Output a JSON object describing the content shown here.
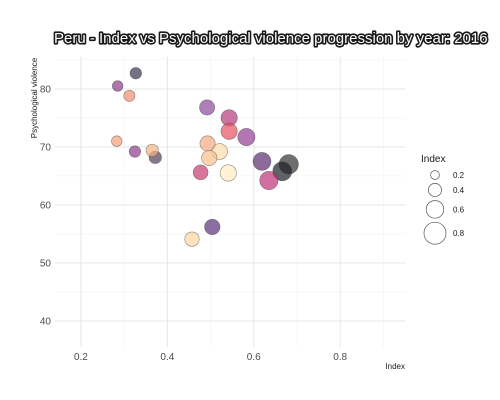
{
  "chart_data": {
    "type": "scatter",
    "title": "Peru - Index vs Psychological violence progression by year: 2016",
    "xlabel": "Index",
    "ylabel": "Psychological violence",
    "xlim": [
      0.14,
      0.95
    ],
    "ylim": [
      35.5,
      85.5
    ],
    "xticks": [
      0.2,
      0.4,
      0.6,
      0.8
    ],
    "yticks": [
      40,
      50,
      60,
      70,
      80
    ],
    "xtick_labels": [
      "0.2",
      "0.4",
      "0.6",
      "0.8"
    ],
    "ytick_labels": [
      "40",
      "50",
      "60",
      "70",
      "80"
    ],
    "grid": true,
    "legend": {
      "title": "Index",
      "position": "right",
      "items": [
        {
          "label": "0.2",
          "value": 0.2
        },
        {
          "label": "0.4",
          "value": 0.4
        },
        {
          "label": "0.6",
          "value": 0.6
        },
        {
          "label": "0.8",
          "value": 0.8
        }
      ]
    },
    "size_encoding": "Index",
    "color_encoding": "Index",
    "points": [
      {
        "x": 0.285,
        "y": 80.5,
        "color": "#8c3c8c"
      },
      {
        "x": 0.327,
        "y": 82.7,
        "color": "#3c3450"
      },
      {
        "x": 0.312,
        "y": 78.8,
        "color": "#f08c6e"
      },
      {
        "x": 0.283,
        "y": 71.0,
        "color": "#f5a078"
      },
      {
        "x": 0.325,
        "y": 69.2,
        "color": "#8c3c8c"
      },
      {
        "x": 0.365,
        "y": 69.4,
        "color": "#f5b482"
      },
      {
        "x": 0.372,
        "y": 68.2,
        "color": "#50405a"
      },
      {
        "x": 0.492,
        "y": 76.8,
        "color": "#8c4a9b"
      },
      {
        "x": 0.543,
        "y": 75.0,
        "color": "#b43c78"
      },
      {
        "x": 0.543,
        "y": 72.7,
        "color": "#e6505f"
      },
      {
        "x": 0.583,
        "y": 71.7,
        "color": "#913c91"
      },
      {
        "x": 0.493,
        "y": 70.6,
        "color": "#f5aa82"
      },
      {
        "x": 0.521,
        "y": 69.2,
        "color": "#fcdcaa"
      },
      {
        "x": 0.497,
        "y": 68.1,
        "color": "#f8c08c"
      },
      {
        "x": 0.477,
        "y": 65.6,
        "color": "#c83c6e"
      },
      {
        "x": 0.541,
        "y": 65.5,
        "color": "#fef0c0"
      },
      {
        "x": 0.619,
        "y": 67.5,
        "color": "#5a2c6e"
      },
      {
        "x": 0.635,
        "y": 64.2,
        "color": "#be3278"
      },
      {
        "x": 0.666,
        "y": 65.8,
        "color": "#1e1e28"
      },
      {
        "x": 0.681,
        "y": 67.0,
        "color": "#323232"
      },
      {
        "x": 0.457,
        "y": 54.1,
        "color": "#fcd6a0"
      },
      {
        "x": 0.504,
        "y": 56.2,
        "color": "#5c307a"
      }
    ]
  }
}
